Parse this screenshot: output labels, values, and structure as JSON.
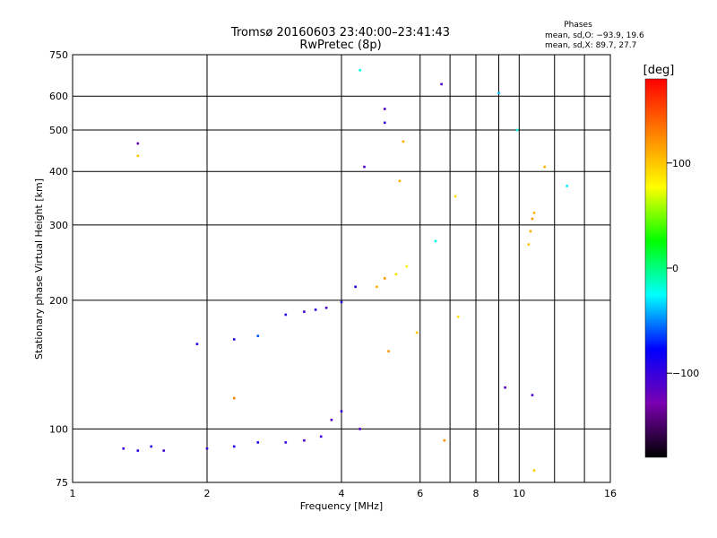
{
  "chart_data": {
    "type": "scatter",
    "title_line1": "Tromsø 20160603 23:40:00–23:41:43",
    "title_line2": "RwPretec (8p)",
    "phases_label": "Phases",
    "phases_o": "mean, sd,O: −93.9, 19.6",
    "phases_x": "mean, sd,X: 89.7, 27.7",
    "xlabel": "Frequency [MHz]",
    "ylabel": "Stationary phase Virtual Height [km]",
    "x_scale": "log2",
    "y_scale": "log",
    "xlim": [
      1,
      16
    ],
    "ylim": [
      75,
      750
    ],
    "grid": true,
    "x_ticks": [
      {
        "v": 1,
        "label": "1"
      },
      {
        "v": 2,
        "label": "2"
      },
      {
        "v": 4,
        "label": "4"
      },
      {
        "v": 6,
        "label": "6"
      },
      {
        "v": 8,
        "label": "8"
      },
      {
        "v": 10,
        "label": "10"
      },
      {
        "v": 16,
        "label": "16"
      }
    ],
    "x_minor": [
      7,
      9,
      12,
      14
    ],
    "y_ticks": [
      {
        "v": 75,
        "label": "75"
      },
      {
        "v": 100,
        "label": "100"
      },
      {
        "v": 200,
        "label": "200"
      },
      {
        "v": 300,
        "label": "300"
      },
      {
        "v": 400,
        "label": "400"
      },
      {
        "v": 500,
        "label": "500"
      },
      {
        "v": 600,
        "label": "600"
      },
      {
        "v": 750,
        "label": "750"
      }
    ],
    "colorbar": {
      "unit": "[deg]",
      "range": [
        -180,
        180
      ],
      "ticks": [
        {
          "v": 100,
          "label": "100"
        },
        {
          "v": 0,
          "label": "0"
        },
        {
          "v": -100,
          "label": "−100"
        }
      ],
      "stops": [
        "#000000",
        "#7a00b0",
        "#0000ff",
        "#00ffff",
        "#00ff00",
        "#ffff00",
        "#ff8000",
        "#ff0000"
      ]
    },
    "o_trace_low": [
      {
        "x": 1.3,
        "y": 90,
        "phase": -100
      },
      {
        "x": 1.4,
        "y": 89,
        "phase": -95
      },
      {
        "x": 1.5,
        "y": 91,
        "phase": -90
      },
      {
        "x": 1.6,
        "y": 89,
        "phase": -105
      },
      {
        "x": 2.0,
        "y": 90,
        "phase": -100
      },
      {
        "x": 2.3,
        "y": 91,
        "phase": -90
      },
      {
        "x": 2.6,
        "y": 93,
        "phase": -85
      },
      {
        "x": 3.0,
        "y": 93,
        "phase": -100
      },
      {
        "x": 3.3,
        "y": 94,
        "phase": -110
      },
      {
        "x": 3.6,
        "y": 96,
        "phase": -100
      },
      {
        "x": 3.8,
        "y": 105,
        "phase": -115
      },
      {
        "x": 4.0,
        "y": 110,
        "phase": -100
      }
    ],
    "o_trace_high": [
      {
        "x": 1.9,
        "y": 158,
        "phase": -100
      },
      {
        "x": 2.3,
        "y": 162,
        "phase": -95
      },
      {
        "x": 2.6,
        "y": 165,
        "phase": -60
      },
      {
        "x": 3.0,
        "y": 185,
        "phase": -95
      },
      {
        "x": 3.3,
        "y": 188,
        "phase": -105
      },
      {
        "x": 3.5,
        "y": 190,
        "phase": -100
      },
      {
        "x": 3.7,
        "y": 192,
        "phase": -110
      },
      {
        "x": 4.0,
        "y": 198,
        "phase": -95
      },
      {
        "x": 4.3,
        "y": 215,
        "phase": -90
      }
    ],
    "x_trace": [
      {
        "x": 4.8,
        "y": 215,
        "phase": 110
      },
      {
        "x": 5.0,
        "y": 225,
        "phase": 120
      },
      {
        "x": 5.3,
        "y": 230,
        "phase": 90
      },
      {
        "x": 5.6,
        "y": 240,
        "phase": 85
      },
      {
        "x": 10.5,
        "y": 270,
        "phase": 100
      },
      {
        "x": 10.6,
        "y": 290,
        "phase": 110
      },
      {
        "x": 10.7,
        "y": 310,
        "phase": 120
      },
      {
        "x": 10.8,
        "y": 320,
        "phase": 105
      }
    ],
    "scatter": [
      {
        "x": 1.4,
        "y": 465,
        "phase": -120
      },
      {
        "x": 1.4,
        "y": 435,
        "phase": 100
      },
      {
        "x": 4.4,
        "y": 690,
        "phase": -20
      },
      {
        "x": 5.0,
        "y": 560,
        "phase": -110
      },
      {
        "x": 5.0,
        "y": 520,
        "phase": -100
      },
      {
        "x": 5.5,
        "y": 470,
        "phase": 110
      },
      {
        "x": 4.5,
        "y": 410,
        "phase": -110
      },
      {
        "x": 6.7,
        "y": 640,
        "phase": -110
      },
      {
        "x": 9.0,
        "y": 610,
        "phase": -40
      },
      {
        "x": 9.9,
        "y": 500,
        "phase": -20
      },
      {
        "x": 11.4,
        "y": 410,
        "phase": 110
      },
      {
        "x": 12.8,
        "y": 370,
        "phase": -30
      },
      {
        "x": 7.2,
        "y": 350,
        "phase": 90
      },
      {
        "x": 6.5,
        "y": 275,
        "phase": -20
      },
      {
        "x": 5.4,
        "y": 380,
        "phase": 110
      },
      {
        "x": 9.3,
        "y": 125,
        "phase": -110
      },
      {
        "x": 10.7,
        "y": 120,
        "phase": -110
      },
      {
        "x": 4.4,
        "y": 100,
        "phase": -110
      },
      {
        "x": 6.8,
        "y": 94,
        "phase": 120
      },
      {
        "x": 10.8,
        "y": 80,
        "phase": 100
      },
      {
        "x": 2.3,
        "y": 118,
        "phase": 130
      },
      {
        "x": 5.1,
        "y": 152,
        "phase": 120
      },
      {
        "x": 5.9,
        "y": 168,
        "phase": 100
      },
      {
        "x": 7.3,
        "y": 183,
        "phase": 90
      }
    ]
  }
}
